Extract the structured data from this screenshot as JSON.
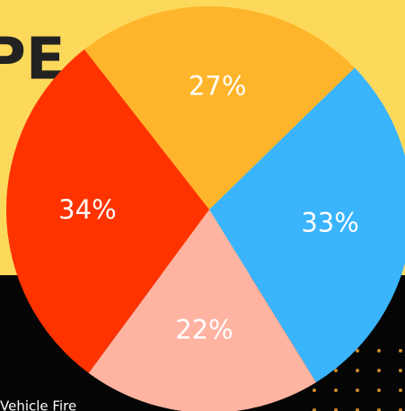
{
  "chart_data": {
    "type": "pie",
    "title": "PE",
    "values": [
      27,
      33,
      22,
      34
    ],
    "value_labels": [
      "27%",
      "33%",
      "22%",
      "34%"
    ],
    "colors": [
      "#ffb52b",
      "#3ab4fd",
      "#ffb3a1",
      "#ff3300"
    ],
    "annotations": [
      "Vehicle Fire"
    ]
  }
}
